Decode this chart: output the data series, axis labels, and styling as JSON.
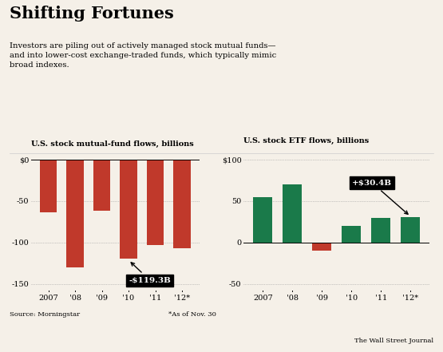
{
  "bg_color": "#f5f0e8",
  "title": "Shifting Fortunes",
  "subtitle": "Investors are piling out of actively managed stock mutual funds—\nand into lower-cost exchange-traded funds, which typically mimic\nbroad indexes.",
  "left_chart": {
    "ylabel": "U.S. stock mutual-fund flows, billions",
    "categories": [
      "2007",
      "'08",
      "'09",
      "'10",
      "'11",
      "'12*"
    ],
    "values": [
      -64,
      -130,
      -62,
      -119.3,
      -103,
      -107
    ],
    "bar_color": "#c0392b",
    "ylim": [
      -160,
      10
    ],
    "yticks": [
      0,
      -50,
      -100,
      -150
    ],
    "annotation_text": "-$119.3B",
    "annotation_bar_idx": 3
  },
  "right_chart": {
    "ylabel": "U.S. stock ETF flows, billions",
    "categories": [
      "2007",
      "'08",
      "'09",
      "'10",
      "'11",
      "'12*"
    ],
    "values": [
      55,
      70,
      -10,
      20,
      30,
      30.4
    ],
    "bar_colors": [
      "#1a7a4a",
      "#1a7a4a",
      "#c0392b",
      "#1a7a4a",
      "#1a7a4a",
      "#1a7a4a"
    ],
    "ylim": [
      -60,
      110
    ],
    "yticks": [
      100,
      50,
      0,
      -50
    ],
    "annotation_text": "+$30.4B",
    "annotation_bar_idx": 5
  },
  "source_text": "Source: Morningstar",
  "asof_text": "*As of Nov. 30",
  "wsj_text": "The Wall Street Journal",
  "dotted_line_color": "#999999",
  "bar_width": 0.65
}
